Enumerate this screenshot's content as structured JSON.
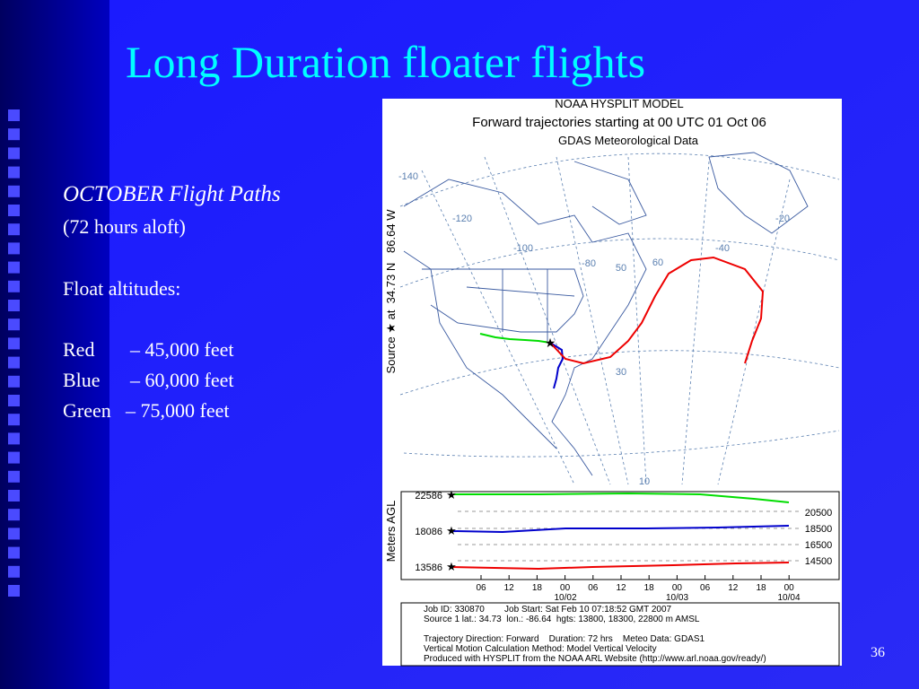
{
  "slide": {
    "title": "Long Duration floater flights",
    "subtitle": "OCTOBER Flight Paths",
    "note": "(72 hours aloft)",
    "float_heading": "Float altitudes:",
    "legend": [
      {
        "name": "Red",
        "text": "– 45,000 feet"
      },
      {
        "name": "Blue",
        "text": "– 60,000 feet"
      },
      {
        "name": "Green",
        "text": "– 75,000 feet"
      }
    ],
    "page_number": "36"
  },
  "figure": {
    "model": "NOAA HYSPLIT MODEL",
    "title": "Forward trajectories starting at 00 UTC 01 Oct 06",
    "data_source": "GDAS Meteorological Data",
    "source_label": "Source ★ at  34.73 N   86.64 W",
    "map_labels": [
      "-140",
      "-120",
      "-100",
      "-80",
      "50",
      "60",
      "-40",
      "-20",
      "30",
      "10"
    ],
    "y_axis_label": "Meters AGL",
    "start_heights": [
      "22586",
      "18086",
      "13586"
    ],
    "right_heights": [
      "20500",
      "18500",
      "16500",
      "14500"
    ],
    "hours": [
      "06",
      "12",
      "18",
      "00",
      "06",
      "12",
      "18",
      "00",
      "06",
      "12",
      "18",
      "00"
    ],
    "dates": [
      "10/02",
      "10/03",
      "10/04"
    ],
    "info": [
      "Job ID: 330870        Job Start: Sat Feb 10 07:18:52 GMT 2007",
      "Source 1 lat.: 34.73  lon.: -86.64  hgts: 13800, 18300, 22800 m AMSL",
      "Trajectory Direction: Forward    Duration: 72 hrs    Meteo Data: GDAS1",
      "Vertical Motion Calculation Method: Model Vertical Velocity",
      "Produced with HYSPLIT from the NOAA ARL Website (http://www.arl.noaa.gov/ready/)"
    ]
  }
}
